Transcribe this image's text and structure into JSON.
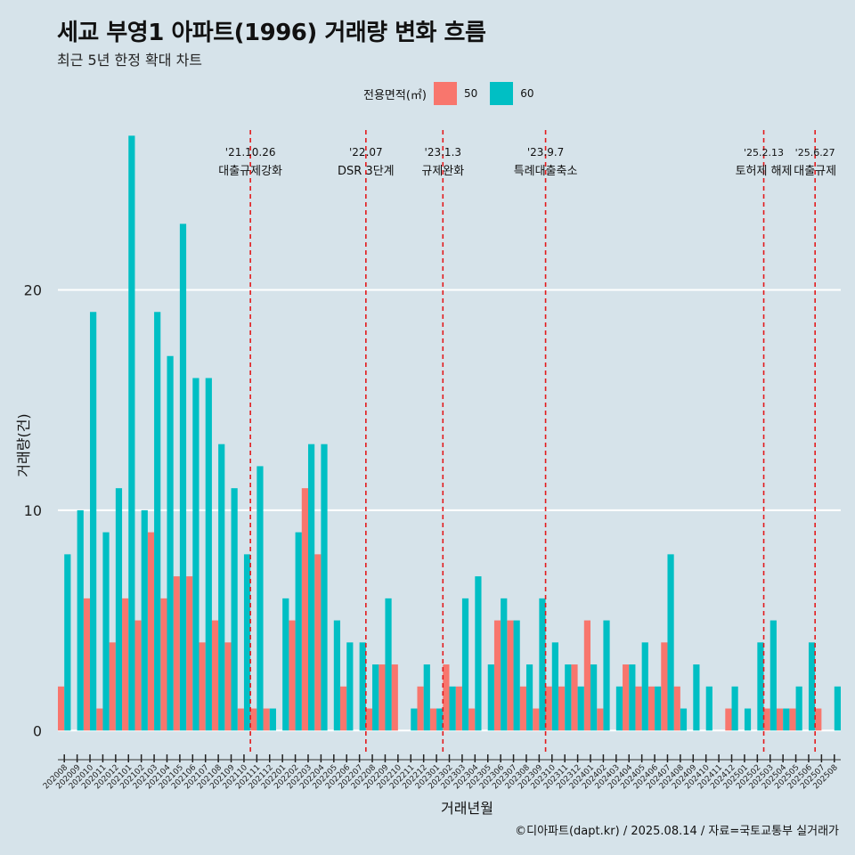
{
  "title": "세교 부영1 아파트(1996) 거래량 변화 흐름",
  "subtitle": "최근 5년 한정 확대 차트",
  "legend": {
    "title": "전용면적(㎡)",
    "items": [
      {
        "label": "50",
        "color": "#f8766d"
      },
      {
        "label": "60",
        "color": "#00bfc4"
      }
    ]
  },
  "credit": "©디아파트(dapt.kr) / 2025.08.14 / 자료=국토교통부 실거래가",
  "colors": {
    "background": "#d6e3ea",
    "grid": "#ffffff",
    "event_line": "#e31a1c"
  },
  "chart_data": {
    "type": "bar",
    "xlabel": "거래년월",
    "ylabel": "거래량(건)",
    "ylim": [
      -1,
      27.5
    ],
    "yticks": [
      0,
      10,
      20
    ],
    "grid": true,
    "legend_position": "top",
    "categories": [
      "202008",
      "202009",
      "202010",
      "202011",
      "202012",
      "202101",
      "202102",
      "202103",
      "202104",
      "202105",
      "202106",
      "202107",
      "202108",
      "202109",
      "202110",
      "202111",
      "202112",
      "202201",
      "202202",
      "202203",
      "202204",
      "202205",
      "202206",
      "202207",
      "202208",
      "202209",
      "202210",
      "202211",
      "202212",
      "202301",
      "202302",
      "202303",
      "202304",
      "202305",
      "202306",
      "202307",
      "202308",
      "202309",
      "202310",
      "202311",
      "202312",
      "202401",
      "202402",
      "202403",
      "202404",
      "202405",
      "202406",
      "202407",
      "202408",
      "202409",
      "202410",
      "202411",
      "202412",
      "202501",
      "202502",
      "202503",
      "202504",
      "202505",
      "202506",
      "202507",
      "202508"
    ],
    "series": [
      {
        "name": "50",
        "color": "#f8766d",
        "values": [
          2,
          0,
          6,
          1,
          4,
          6,
          5,
          9,
          6,
          7,
          7,
          4,
          5,
          4,
          1,
          1,
          1,
          0,
          5,
          11,
          8,
          0,
          2,
          0,
          1,
          3,
          3,
          0,
          2,
          1,
          3,
          2,
          1,
          0,
          5,
          5,
          2,
          1,
          2,
          2,
          3,
          5,
          1,
          0,
          3,
          2,
          2,
          4,
          2,
          0,
          0,
          0,
          1,
          0,
          0,
          1,
          1,
          1,
          0,
          1,
          0
        ]
      },
      {
        "name": "60",
        "color": "#00bfc4",
        "values": [
          8,
          10,
          19,
          9,
          11,
          27,
          10,
          19,
          17,
          23,
          16,
          16,
          13,
          11,
          8,
          12,
          1,
          6,
          9,
          13,
          13,
          5,
          4,
          4,
          3,
          6,
          0,
          1,
          3,
          1,
          2,
          6,
          7,
          3,
          6,
          5,
          3,
          6,
          4,
          3,
          2,
          3,
          5,
          2,
          3,
          4,
          2,
          8,
          1,
          3,
          2,
          0,
          2,
          1,
          4,
          5,
          1,
          2,
          4,
          0,
          2
        ]
      }
    ],
    "events": [
      {
        "after": "202110",
        "date": "'21.10.26",
        "label": "대출규제강화"
      },
      {
        "after": "202207",
        "date": "'22.07",
        "label": "DSR 3단계"
      },
      {
        "after": "202301",
        "date": "'23.1.3",
        "label": "규제완화"
      },
      {
        "after": "202309",
        "date": "'23.9.7",
        "label": "특례대출축소"
      },
      {
        "after": "202502",
        "date": "'25.2.13",
        "label": "토허제 해제"
      },
      {
        "after": "202506",
        "date": "'25.6.27",
        "label": "대출규제"
      }
    ]
  }
}
